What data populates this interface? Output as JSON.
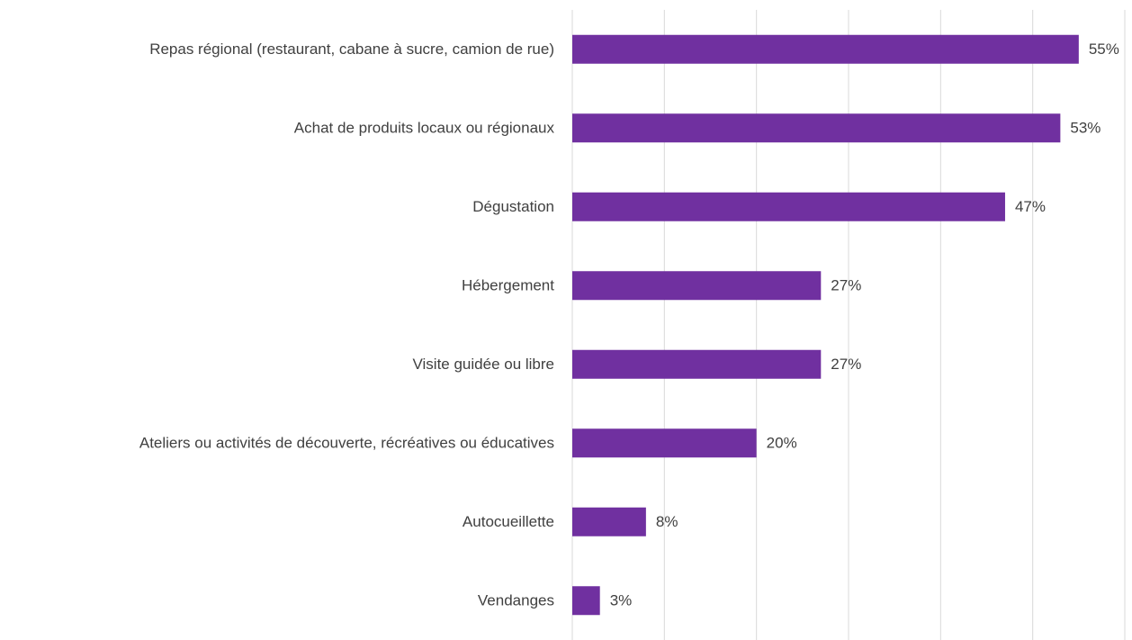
{
  "chart_data": {
    "type": "bar",
    "orientation": "horizontal",
    "categories": [
      "Repas régional (restaurant, cabane à sucre, camion de rue)",
      "Achat de produits locaux ou régionaux",
      "Dégustation",
      "Hébergement",
      "Visite guidée ou libre",
      "Ateliers ou activités de découverte, récréatives ou éducatives",
      "Autocueillette",
      "Vendanges"
    ],
    "values": [
      55,
      53,
      47,
      27,
      27,
      20,
      8,
      3
    ],
    "value_labels": [
      "55%",
      "53%",
      "47%",
      "27%",
      "27%",
      "20%",
      "8%",
      "3%"
    ],
    "color": "#7030a0",
    "xlim": [
      0,
      60
    ],
    "xticks": [
      0,
      10,
      20,
      30,
      40,
      50,
      60
    ],
    "grid": true
  }
}
